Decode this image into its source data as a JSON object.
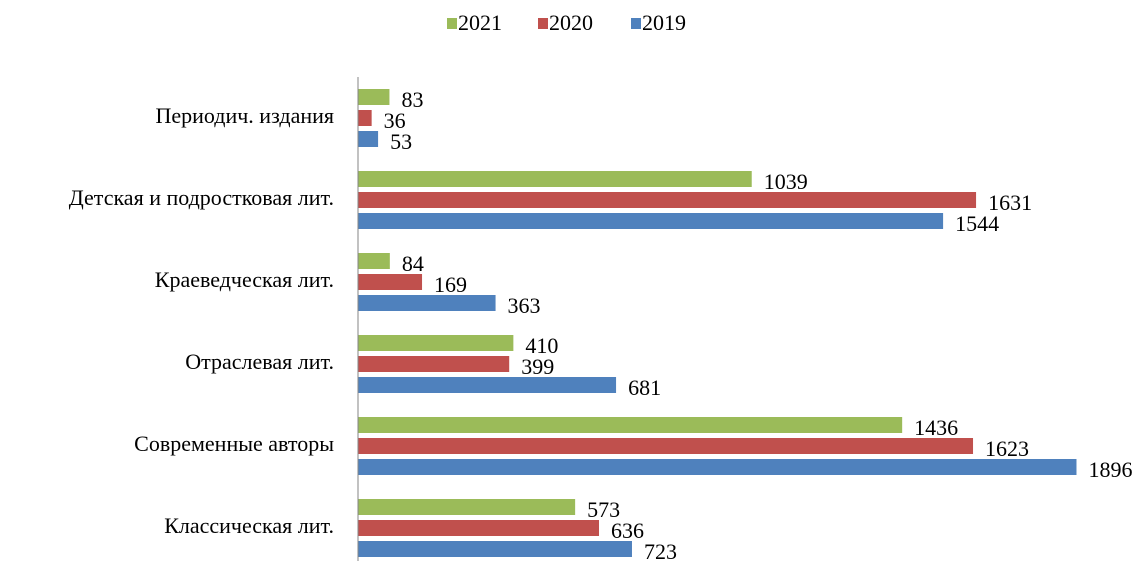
{
  "chart_data": {
    "type": "hbar",
    "categories": [
      "Периодич. издания",
      "Детская и подростковая лит.",
      "Краеведческая лит.",
      "Отраслевая лит.",
      "Современные авторы",
      "Классическая лит."
    ],
    "series": [
      {
        "name": "2021",
        "color": "#9bbb59",
        "values": [
          83,
          1039,
          84,
          410,
          1436,
          573
        ]
      },
      {
        "name": "2020",
        "color": "#c0504d",
        "values": [
          36,
          1631,
          169,
          399,
          1623,
          636
        ]
      },
      {
        "name": "2019",
        "color": "#4f81bd",
        "values": [
          53,
          1544,
          363,
          681,
          1896,
          723
        ]
      }
    ],
    "xlim": [
      0,
      1900
    ],
    "legend": "top"
  }
}
